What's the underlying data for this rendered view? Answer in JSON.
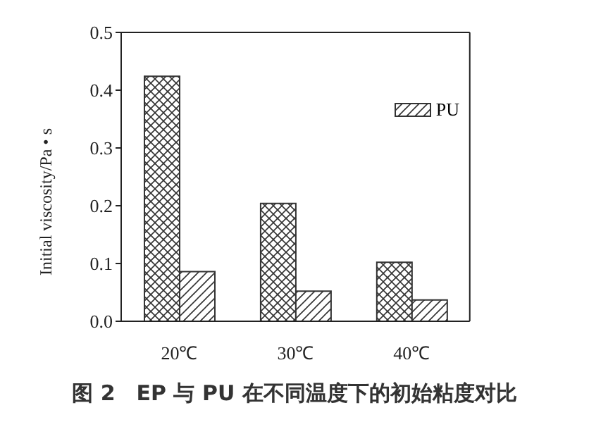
{
  "chart_data": {
    "type": "bar",
    "categories": [
      "20℃",
      "30℃",
      "40℃"
    ],
    "series": [
      {
        "color": "#333333",
        "values": [
          0.424,
          0.204,
          0.102
        ]
      },
      {
        "name": "PU",
        "color": "#333333",
        "values": [
          0.086,
          0.052,
          0.037
        ]
      }
    ],
    "ylabel": "Initial viscosity/Pa • s",
    "ylim": [
      0,
      0.5
    ],
    "yticks": [
      {
        "value": 0,
        "label": "0.0"
      },
      {
        "value": 0.1,
        "label": "0.1"
      },
      {
        "value": 0.2,
        "label": "0.2"
      },
      {
        "value": 0.3,
        "label": "0.3"
      },
      {
        "value": 0.4,
        "label": "0.4"
      },
      {
        "value": 0.5,
        "label": "0.5"
      }
    ],
    "grid": false,
    "legend": "top right",
    "annotations": [
      "图 2　EP 与 PU 在不同温度下的初始粘度对比"
    ]
  }
}
